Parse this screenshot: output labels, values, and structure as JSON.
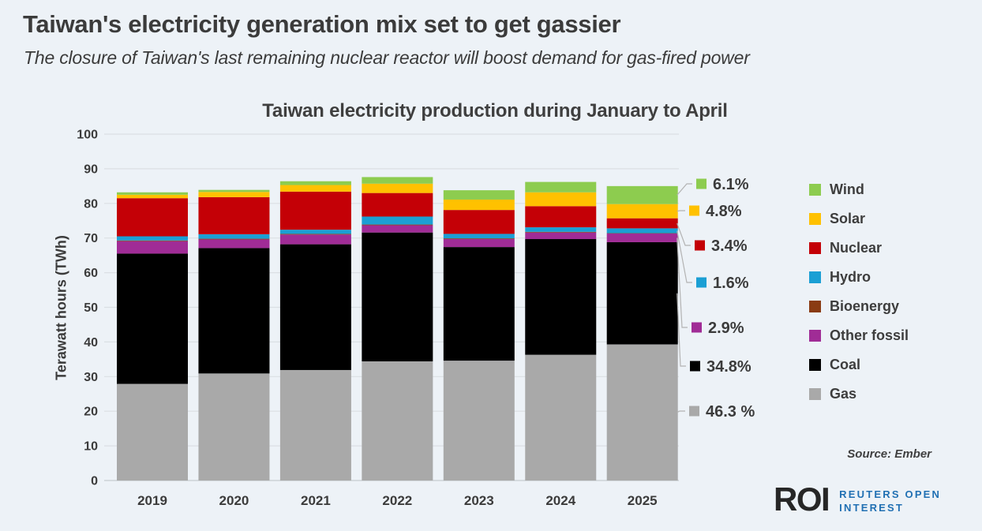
{
  "header": {
    "title": "Taiwan's electricity generation mix set to get gassier",
    "subtitle": "The closure of Taiwan's last remaining nuclear reactor will boost demand for gas-fired power"
  },
  "chart_data": {
    "type": "bar",
    "stacked": true,
    "title": "Taiwan electricity production during January to April",
    "xlabel": "",
    "ylabel": "Terawatt hours (TWh)",
    "ylim": [
      0,
      100
    ],
    "ytick_step": 10,
    "grid": true,
    "legend_position": "right",
    "categories": [
      "2019",
      "2020",
      "2021",
      "2022",
      "2023",
      "2024",
      "2025"
    ],
    "series": [
      {
        "name": "Gas",
        "color": "#a9a9a9",
        "values": [
          27.9,
          30.9,
          31.9,
          34.4,
          34.6,
          36.3,
          39.3
        ]
      },
      {
        "name": "Coal",
        "color": "#000000",
        "values": [
          37.6,
          36.2,
          36.3,
          37.2,
          32.8,
          33.4,
          29.5
        ]
      },
      {
        "name": "Other fossil",
        "color": "#a02c96",
        "values": [
          3.6,
          2.5,
          2.8,
          2.1,
          2.3,
          1.9,
          2.5
        ]
      },
      {
        "name": "Bioenergy",
        "color": "#8a3b12",
        "values": [
          0.2,
          0.2,
          0.2,
          0.2,
          0.2,
          0.2,
          0.1
        ]
      },
      {
        "name": "Hydro",
        "color": "#1b9fd4",
        "values": [
          1.2,
          1.3,
          1.2,
          2.3,
          1.3,
          1.3,
          1.4
        ]
      },
      {
        "name": "Nuclear",
        "color": "#c40006",
        "values": [
          11.0,
          10.7,
          11.0,
          6.8,
          6.9,
          6.1,
          2.9
        ]
      },
      {
        "name": "Solar",
        "color": "#ffc100",
        "values": [
          1.0,
          1.5,
          1.9,
          2.7,
          3.0,
          4.0,
          4.1
        ]
      },
      {
        "name": "Wind",
        "color": "#8dcc4f",
        "values": [
          0.7,
          0.6,
          1.1,
          1.9,
          2.7,
          3.0,
          5.2
        ]
      }
    ],
    "annotations": [
      {
        "series": "Wind",
        "text": "6.1%"
      },
      {
        "series": "Solar",
        "text": "4.8%"
      },
      {
        "series": "Nuclear",
        "text": "3.4%"
      },
      {
        "series": "Hydro",
        "text": "1.6%"
      },
      {
        "series": "Other fossil",
        "text": "2.9%"
      },
      {
        "series": "Coal",
        "text": "34.8%"
      },
      {
        "series": "Gas",
        "text": "46.3 %"
      }
    ]
  },
  "footer": {
    "source": "Source: Ember",
    "logo": {
      "mark": "ROI",
      "tagline_line1": "REUTERS OPEN",
      "tagline_line2": "INTEREST",
      "brand_blue": "#2170b3",
      "mark_color": "#262626"
    }
  }
}
